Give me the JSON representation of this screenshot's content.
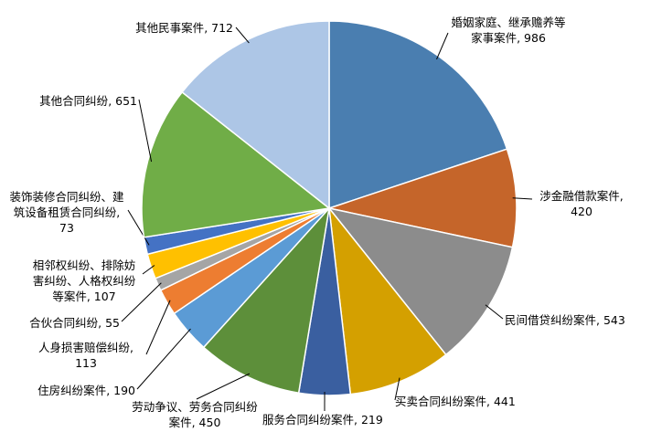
{
  "chart_data": {
    "type": "pie",
    "categories": [
      "婚姻家庭、继承赡养等家事案件",
      "涉金融借款案件",
      "民间借贷纠纷案件",
      "买卖合同纠纷案件",
      "服务合同纠纷案件",
      "劳动争议、劳务合同纠纷案件",
      "住房纠纷案件",
      "人身损害赔偿纠纷",
      "合伙合同纠纷",
      "相邻权纠纷、排除妨害纠纷、人格权纠纷等案件",
      "装饰装修合同纠纷、建筑设备租赁合同纠纷",
      "其他合同纠纷",
      "其他民事案件"
    ],
    "values": [
      986,
      420,
      543,
      441,
      219,
      450,
      190,
      113,
      55,
      107,
      73,
      651,
      712
    ],
    "colors": [
      "#4a7eb0",
      "#c5652a",
      "#8c8c8c",
      "#d4a000",
      "#3a5fa0",
      "#5d8f3a",
      "#5b9bd5",
      "#ed7d31",
      "#a5a5a5",
      "#ffc000",
      "#4472c4",
      "#70ad47",
      "#adc6e6"
    ],
    "label_separator": ", "
  }
}
